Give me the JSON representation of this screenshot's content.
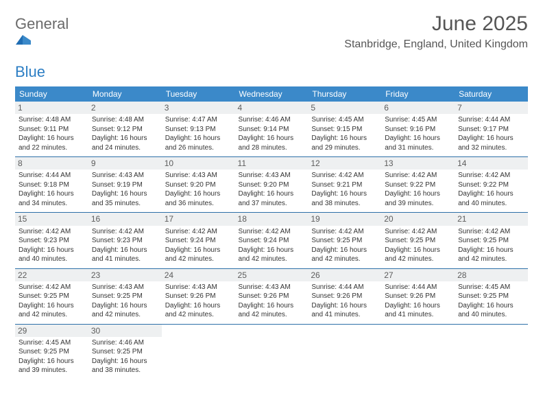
{
  "logo": {
    "general": "General",
    "blue": "Blue"
  },
  "title": "June 2025",
  "location": "Stanbridge, England, United Kingdom",
  "colors": {
    "header_bg": "#3b89c9",
    "header_text": "#ffffff",
    "cell_border": "#2c6fa8",
    "daynum_bg": "#eef0f1",
    "text": "#333333",
    "logo_blue": "#2c7ec4",
    "logo_gray": "#6a6a6a"
  },
  "daysOfWeek": [
    "Sunday",
    "Monday",
    "Tuesday",
    "Wednesday",
    "Thursday",
    "Friday",
    "Saturday"
  ],
  "weeks": [
    [
      {
        "num": "1",
        "sunrise": "4:48 AM",
        "sunset": "9:11 PM",
        "dl_h": "16",
        "dl_m": "22"
      },
      {
        "num": "2",
        "sunrise": "4:48 AM",
        "sunset": "9:12 PM",
        "dl_h": "16",
        "dl_m": "24"
      },
      {
        "num": "3",
        "sunrise": "4:47 AM",
        "sunset": "9:13 PM",
        "dl_h": "16",
        "dl_m": "26"
      },
      {
        "num": "4",
        "sunrise": "4:46 AM",
        "sunset": "9:14 PM",
        "dl_h": "16",
        "dl_m": "28"
      },
      {
        "num": "5",
        "sunrise": "4:45 AM",
        "sunset": "9:15 PM",
        "dl_h": "16",
        "dl_m": "29"
      },
      {
        "num": "6",
        "sunrise": "4:45 AM",
        "sunset": "9:16 PM",
        "dl_h": "16",
        "dl_m": "31"
      },
      {
        "num": "7",
        "sunrise": "4:44 AM",
        "sunset": "9:17 PM",
        "dl_h": "16",
        "dl_m": "32"
      }
    ],
    [
      {
        "num": "8",
        "sunrise": "4:44 AM",
        "sunset": "9:18 PM",
        "dl_h": "16",
        "dl_m": "34"
      },
      {
        "num": "9",
        "sunrise": "4:43 AM",
        "sunset": "9:19 PM",
        "dl_h": "16",
        "dl_m": "35"
      },
      {
        "num": "10",
        "sunrise": "4:43 AM",
        "sunset": "9:20 PM",
        "dl_h": "16",
        "dl_m": "36"
      },
      {
        "num": "11",
        "sunrise": "4:43 AM",
        "sunset": "9:20 PM",
        "dl_h": "16",
        "dl_m": "37"
      },
      {
        "num": "12",
        "sunrise": "4:42 AM",
        "sunset": "9:21 PM",
        "dl_h": "16",
        "dl_m": "38"
      },
      {
        "num": "13",
        "sunrise": "4:42 AM",
        "sunset": "9:22 PM",
        "dl_h": "16",
        "dl_m": "39"
      },
      {
        "num": "14",
        "sunrise": "4:42 AM",
        "sunset": "9:22 PM",
        "dl_h": "16",
        "dl_m": "40"
      }
    ],
    [
      {
        "num": "15",
        "sunrise": "4:42 AM",
        "sunset": "9:23 PM",
        "dl_h": "16",
        "dl_m": "40"
      },
      {
        "num": "16",
        "sunrise": "4:42 AM",
        "sunset": "9:23 PM",
        "dl_h": "16",
        "dl_m": "41"
      },
      {
        "num": "17",
        "sunrise": "4:42 AM",
        "sunset": "9:24 PM",
        "dl_h": "16",
        "dl_m": "42"
      },
      {
        "num": "18",
        "sunrise": "4:42 AM",
        "sunset": "9:24 PM",
        "dl_h": "16",
        "dl_m": "42"
      },
      {
        "num": "19",
        "sunrise": "4:42 AM",
        "sunset": "9:25 PM",
        "dl_h": "16",
        "dl_m": "42"
      },
      {
        "num": "20",
        "sunrise": "4:42 AM",
        "sunset": "9:25 PM",
        "dl_h": "16",
        "dl_m": "42"
      },
      {
        "num": "21",
        "sunrise": "4:42 AM",
        "sunset": "9:25 PM",
        "dl_h": "16",
        "dl_m": "42"
      }
    ],
    [
      {
        "num": "22",
        "sunrise": "4:42 AM",
        "sunset": "9:25 PM",
        "dl_h": "16",
        "dl_m": "42"
      },
      {
        "num": "23",
        "sunrise": "4:43 AM",
        "sunset": "9:25 PM",
        "dl_h": "16",
        "dl_m": "42"
      },
      {
        "num": "24",
        "sunrise": "4:43 AM",
        "sunset": "9:26 PM",
        "dl_h": "16",
        "dl_m": "42"
      },
      {
        "num": "25",
        "sunrise": "4:43 AM",
        "sunset": "9:26 PM",
        "dl_h": "16",
        "dl_m": "42"
      },
      {
        "num": "26",
        "sunrise": "4:44 AM",
        "sunset": "9:26 PM",
        "dl_h": "16",
        "dl_m": "41"
      },
      {
        "num": "27",
        "sunrise": "4:44 AM",
        "sunset": "9:26 PM",
        "dl_h": "16",
        "dl_m": "41"
      },
      {
        "num": "28",
        "sunrise": "4:45 AM",
        "sunset": "9:25 PM",
        "dl_h": "16",
        "dl_m": "40"
      }
    ],
    [
      {
        "num": "29",
        "sunrise": "4:45 AM",
        "sunset": "9:25 PM",
        "dl_h": "16",
        "dl_m": "39"
      },
      {
        "num": "30",
        "sunrise": "4:46 AM",
        "sunset": "9:25 PM",
        "dl_h": "16",
        "dl_m": "38"
      },
      null,
      null,
      null,
      null,
      null
    ]
  ],
  "labels": {
    "sunrise": "Sunrise:",
    "sunset": "Sunset:",
    "daylight": "Daylight:",
    "hours": "hours",
    "and": "and",
    "minutes": "minutes."
  }
}
